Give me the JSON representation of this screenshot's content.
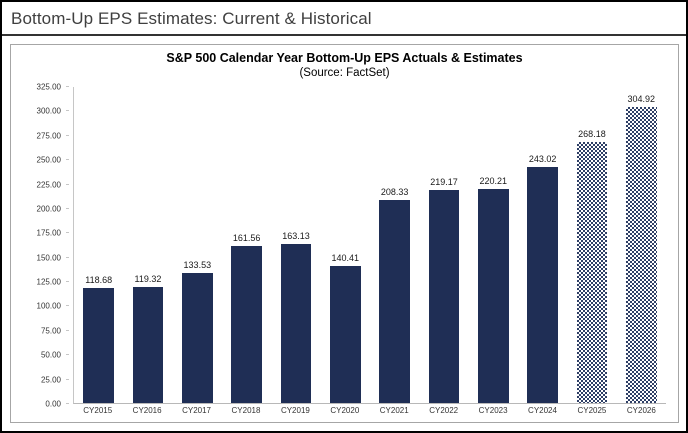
{
  "header": {
    "title": "Bottom-Up EPS Estimates: Current & Historical"
  },
  "chart_data": {
    "type": "bar",
    "title": "S&P 500 Calendar Year Bottom-Up EPS Actuals & Estimates",
    "subtitle": "(Source: FactSet)",
    "categories": [
      "CY2015",
      "CY2016",
      "CY2017",
      "CY2018",
      "CY2019",
      "CY2020",
      "CY2021",
      "CY2022",
      "CY2023",
      "CY2024",
      "CY2025",
      "CY2026"
    ],
    "values": [
      118.68,
      119.32,
      133.53,
      161.56,
      163.13,
      140.41,
      208.33,
      219.17,
      220.21,
      243.02,
      268.18,
      304.92
    ],
    "value_labels": [
      "118.68",
      "119.32",
      "133.53",
      "161.56",
      "163.13",
      "140.41",
      "208.33",
      "219.17",
      "220.21",
      "243.02",
      "268.18",
      "304.92"
    ],
    "estimate_categories": [
      "CY2025",
      "CY2026"
    ],
    "xlabel": "",
    "ylabel": "",
    "ylim": [
      0,
      325
    ],
    "ytick_step": 25,
    "ytick_format_decimals": 2,
    "grid": false,
    "legend": "none",
    "bar_color": "#1f2e55",
    "estimate_bar_style": "navy-checker-hatch-on-white",
    "axis_line_color": "#c6c6c6"
  }
}
